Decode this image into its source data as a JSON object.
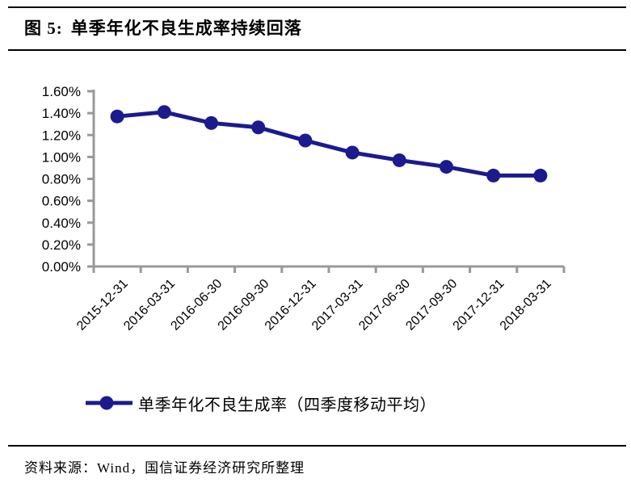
{
  "figure": {
    "label": "图 5:",
    "title": "单季年化不良生成率持续回落"
  },
  "chart_data": {
    "type": "line",
    "title": "单季年化不良生成率持续回落",
    "categories": [
      "2015-12-31",
      "2016-03-31",
      "2016-06-30",
      "2016-09-30",
      "2016-12-31",
      "2017-03-31",
      "2017-06-30",
      "2017-09-30",
      "2017-12-31",
      "2018-03-31"
    ],
    "series": [
      {
        "name": "单季年化不良生成率（四季度移动平均）",
        "values": [
          1.37,
          1.41,
          1.31,
          1.27,
          1.15,
          1.04,
          0.97,
          0.91,
          0.83,
          0.83
        ]
      }
    ],
    "unit": "%",
    "ylim": [
      0,
      1.6
    ],
    "ytick_step": 0.2,
    "ytick_labels": [
      "0.00%",
      "0.20%",
      "0.40%",
      "0.60%",
      "0.80%",
      "1.00%",
      "1.20%",
      "1.40%",
      "1.60%"
    ],
    "xlabel": "",
    "ylabel": "",
    "grid": false,
    "legend_position": "bottom",
    "marker": "circle",
    "line_color": "#1b1b8e",
    "axis_color": "#999999",
    "label_color": "#000000"
  },
  "legend": {
    "label": "单季年化不良生成率（四季度移动平均）"
  },
  "footer": {
    "source": "资料来源：Wind，国信证券经济研究所整理"
  }
}
